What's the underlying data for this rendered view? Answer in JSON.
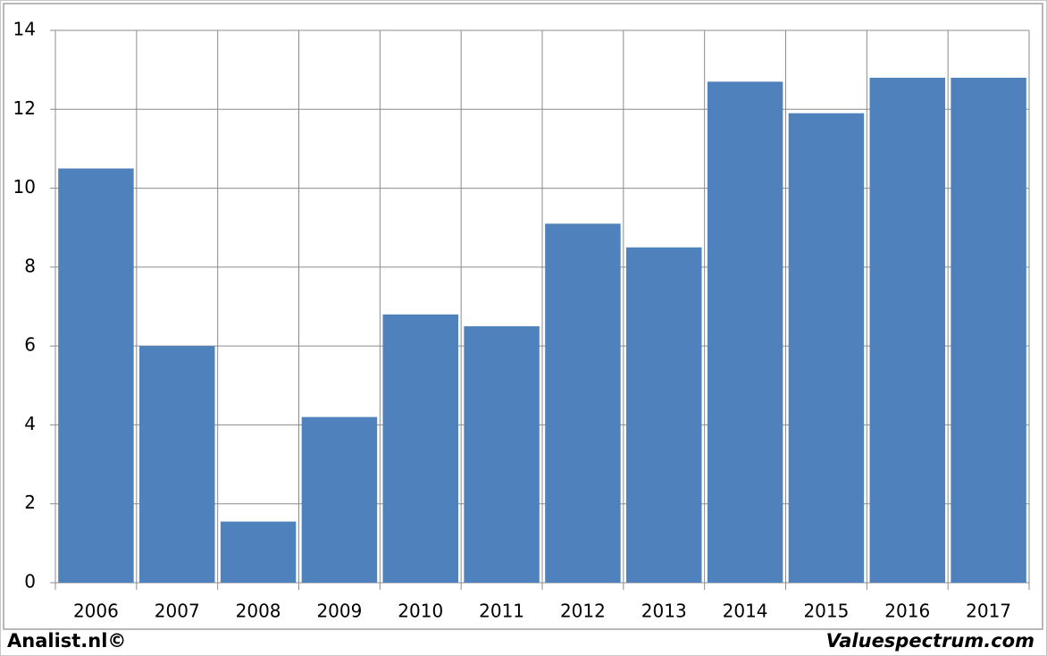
{
  "chart_data": {
    "type": "bar",
    "categories": [
      "2006",
      "2007",
      "2008",
      "2009",
      "2010",
      "2011",
      "2012",
      "2013",
      "2014",
      "2015",
      "2016",
      "2017"
    ],
    "values": [
      10.5,
      6.0,
      1.55,
      4.2,
      6.8,
      6.5,
      9.1,
      8.5,
      12.7,
      11.9,
      12.8,
      12.8
    ],
    "color": "#4f81bd",
    "ylim": [
      0,
      14
    ],
    "yticks": [
      0,
      2,
      4,
      6,
      8,
      10,
      12,
      14
    ],
    "grid": true,
    "source_left": "Analist.nl©",
    "source_right": "Valuespectrum.com"
  }
}
